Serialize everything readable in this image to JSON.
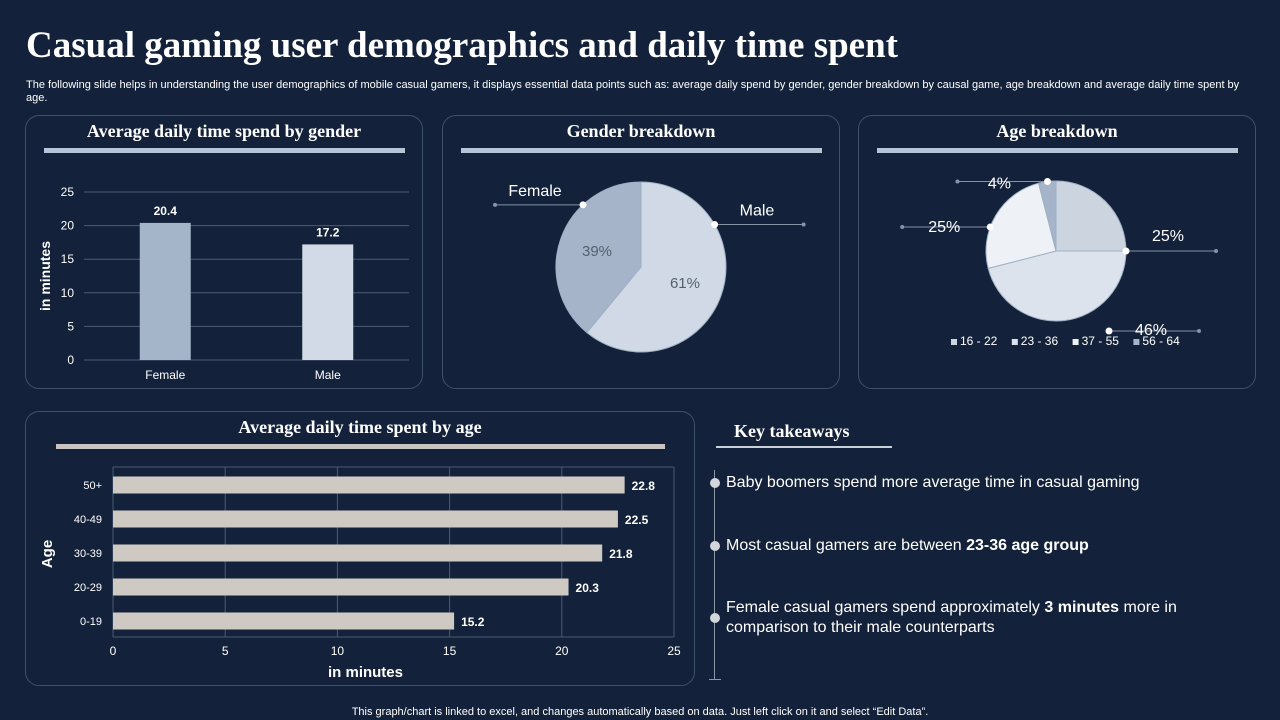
{
  "header": {
    "title": "Casual gaming user demographics and daily time spent",
    "subtitle": "The following slide helps in understanding the user demographics of mobile casual gamers, it displays essential data points such as: average daily spend by gender, gender breakdown by causal game, age breakdown and average daily time spent by age."
  },
  "colors": {
    "background": "#13223a",
    "bar_female": "#a4b4c9",
    "bar_male": "#d1dae6",
    "age_bar": "#cfc9c4",
    "pie_female": "#a5b4c8",
    "pie_male": "#d0d9e5"
  },
  "chart_data": [
    {
      "type": "bar",
      "title": "Average daily time spend by gender",
      "categories": [
        "Female",
        "Male"
      ],
      "values": [
        20.4,
        17.2
      ],
      "ylabel": "in minutes",
      "ylim": [
        0,
        25
      ],
      "yticks": [
        "0",
        "5",
        "10",
        "15",
        "20",
        "25"
      ],
      "value_labels": [
        "20.4",
        "17.2"
      ],
      "grid": true
    },
    {
      "type": "pie",
      "title": "Gender breakdown",
      "labels": [
        "Male",
        "Female"
      ],
      "values": [
        61,
        39
      ],
      "value_labels": [
        "61%",
        "39%"
      ]
    },
    {
      "type": "pie",
      "title": "Age breakdown",
      "labels": [
        "16 - 22",
        "23 - 36",
        "37 - 55",
        "56 - 64"
      ],
      "values": [
        25,
        46,
        25,
        4
      ],
      "value_labels": [
        "25%",
        "46%",
        "25%",
        "4%"
      ],
      "colors": [
        "#cbd4df",
        "#dce3ec",
        "#eef2f7",
        "#a5b4c8"
      ],
      "legend": "bottom"
    },
    {
      "type": "bar",
      "orientation": "horizontal",
      "title": "Average daily time spent by age",
      "categories": [
        "50+",
        "40-49",
        "30-39",
        "20-29",
        "0-19"
      ],
      "values": [
        22.8,
        22.5,
        21.8,
        20.3,
        15.2
      ],
      "value_labels": [
        "22.8",
        "22.5",
        "21.8",
        "20.3",
        "15.2"
      ],
      "xlabel": "in minutes",
      "ylabel": "Age",
      "xlim": [
        0,
        25
      ],
      "xticks": [
        "0",
        "5",
        "10",
        "15",
        "20",
        "25"
      ],
      "grid": true
    }
  ],
  "takeaways": {
    "title": "Key takeaways",
    "items": [
      {
        "text": "Baby boomers spend more average time in casual gaming"
      },
      {
        "text": "Most casual gamers are between ",
        "bold": "23-36 age group"
      },
      {
        "text": "Female casual gamers spend approximately ",
        "bold": "3 minutes",
        "tail": " more in comparison to their male counterparts"
      }
    ]
  },
  "footer": "This graph/chart is linked to excel, and changes automatically based on data. Just left click on it and select “Edit Data”."
}
